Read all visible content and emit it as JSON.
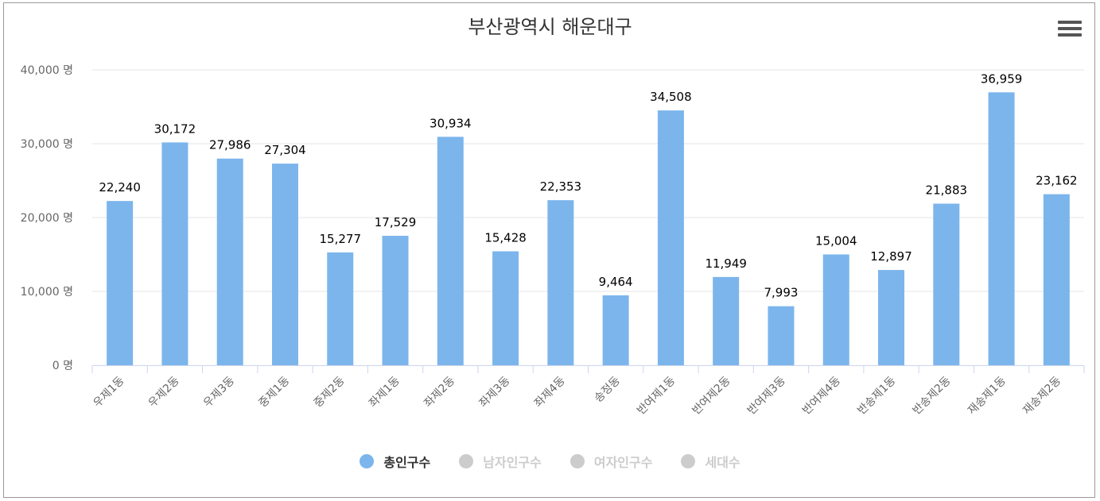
{
  "chart_data": {
    "type": "bar",
    "title": "부산광역시 해운대구",
    "categories": [
      "우제1동",
      "우제2동",
      "우제3동",
      "중제1동",
      "중제2동",
      "좌제1동",
      "좌제2동",
      "좌제3동",
      "좌제4동",
      "송정동",
      "반여제1동",
      "반여제2동",
      "반여제3동",
      "반여제4동",
      "반송제1동",
      "반송제2동",
      "재송제1동",
      "재송제2동"
    ],
    "series": [
      {
        "name": "총인구수",
        "values": [
          22240,
          30172,
          27986,
          27304,
          15277,
          17529,
          30934,
          15428,
          22353,
          9464,
          34508,
          11949,
          7993,
          15004,
          12897,
          21883,
          36959,
          23162
        ]
      }
    ],
    "value_labels": [
      "22,240",
      "30,172",
      "27,986",
      "27,304",
      "15,277",
      "17,529",
      "30,934",
      "15,428",
      "22,353",
      "9,464",
      "34,508",
      "11,949",
      "7,993",
      "15,004",
      "12,897",
      "21,883",
      "36,959",
      "23,162"
    ],
    "ylim": [
      0,
      40000
    ],
    "yticks": [
      0,
      10000,
      20000,
      30000,
      40000
    ],
    "ytick_labels": [
      "0 명",
      "10,000 명",
      "20,000 명",
      "30,000 명",
      "40,000 명"
    ],
    "grid": true,
    "legend_placement": "bottom-center",
    "bar_color": "#7cb5ec"
  },
  "legend": [
    {
      "label": "총인구수",
      "color": "#7cb5ec",
      "active": true
    },
    {
      "label": "남자인구수",
      "color": "#cccccc",
      "active": false
    },
    {
      "label": "여자인구수",
      "color": "#cccccc",
      "active": false
    },
    {
      "label": "세대수",
      "color": "#cccccc",
      "active": false
    }
  ],
  "menu_icon": "hamburger-menu-icon"
}
